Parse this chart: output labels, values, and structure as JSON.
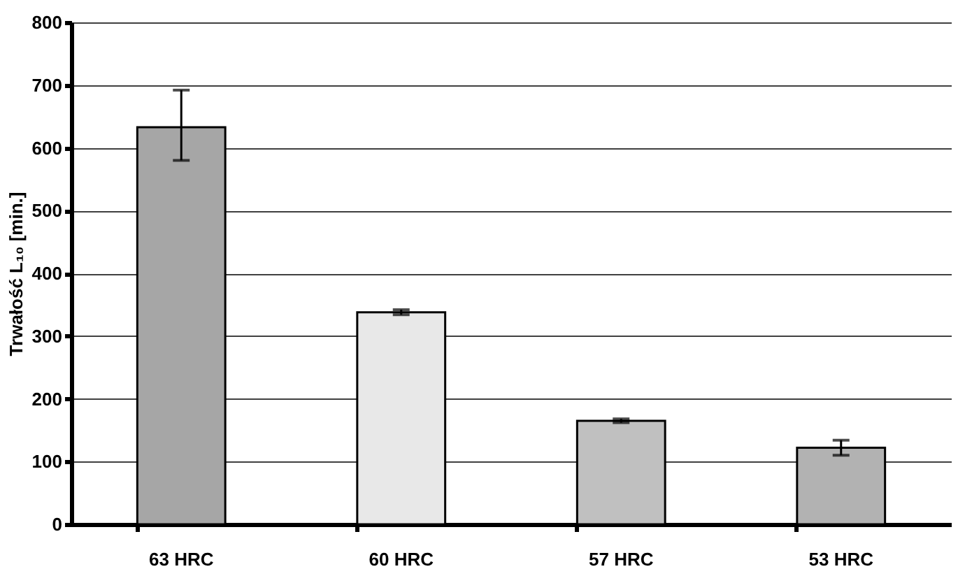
{
  "chart_data": {
    "type": "bar",
    "ylabel": "Trwałość L₁₀ [min.]",
    "categories": [
      "63 HRC",
      "60 HRC",
      "57 HRC",
      "53 HRC"
    ],
    "values": [
      633,
      338,
      165,
      122
    ],
    "colors": [
      "#a6a6a6",
      "#e8e8e8",
      "#c0c0c0",
      "#b2b2b2"
    ],
    "errors": [
      [
        580,
        692
      ],
      4,
      3,
      12
    ],
    "ylim": [
      0,
      800
    ],
    "yticks": [
      0,
      100,
      200,
      300,
      400,
      500,
      600,
      700,
      800
    ],
    "grid": "y"
  }
}
